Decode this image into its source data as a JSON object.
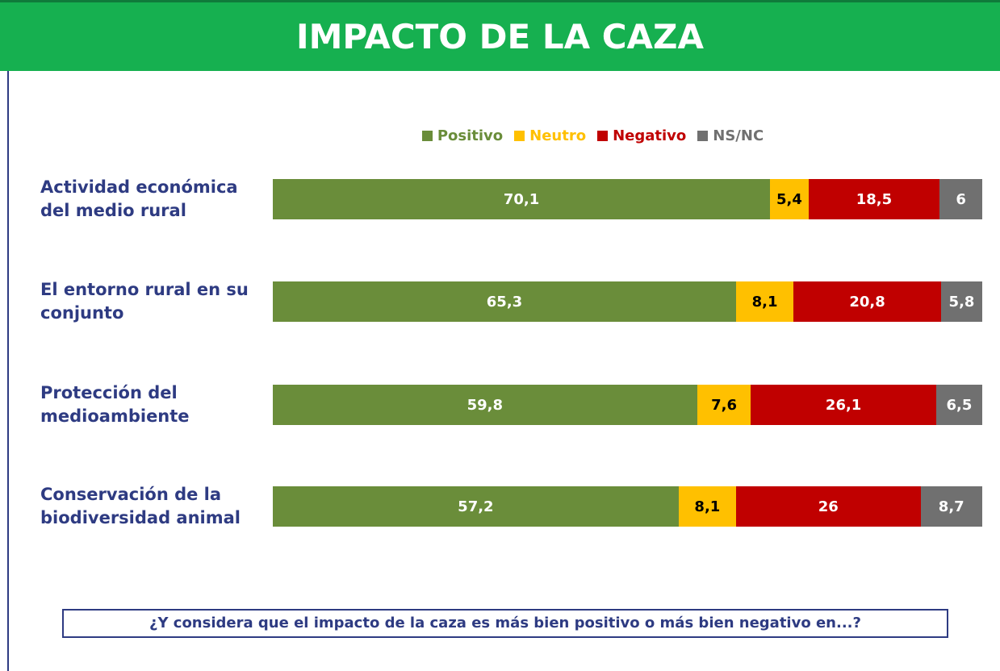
{
  "chart_data": {
    "type": "stacked_bar_horizontal",
    "title": "IMPACTO DE LA CAZA",
    "categories": [
      "Actividad económica del medio rural",
      "El entorno rural en su conjunto",
      "Protección del medioambiente",
      "Conservación de la biodiversidad animal"
    ],
    "series": [
      {
        "name": "Positivo",
        "color": "#6a8d3a",
        "values": [
          70.1,
          65.3,
          59.8,
          57.2
        ],
        "value_labels": [
          "70,1",
          "65,3",
          "59,8",
          "57,2"
        ]
      },
      {
        "name": "Neutro",
        "color": "#ffc000",
        "values": [
          5.4,
          8.1,
          7.6,
          8.1
        ],
        "value_labels": [
          "5,4",
          "8,1",
          "7,6",
          "8,1"
        ]
      },
      {
        "name": "Negativo",
        "color": "#c00000",
        "values": [
          18.5,
          20.8,
          26.1,
          26
        ],
        "value_labels": [
          "18,5",
          "20,8",
          "26,1",
          "26"
        ]
      },
      {
        "name": "NS/NC",
        "color": "#707070",
        "values": [
          6,
          5.8,
          6.5,
          8.7
        ],
        "value_labels": [
          "6",
          "5,8",
          "6,5",
          "8,7"
        ]
      }
    ],
    "xlim": [
      0,
      100
    ],
    "annotation": "¿Y considera que el impacto de la caza es más bien positivo o más bien negativo en...?"
  }
}
